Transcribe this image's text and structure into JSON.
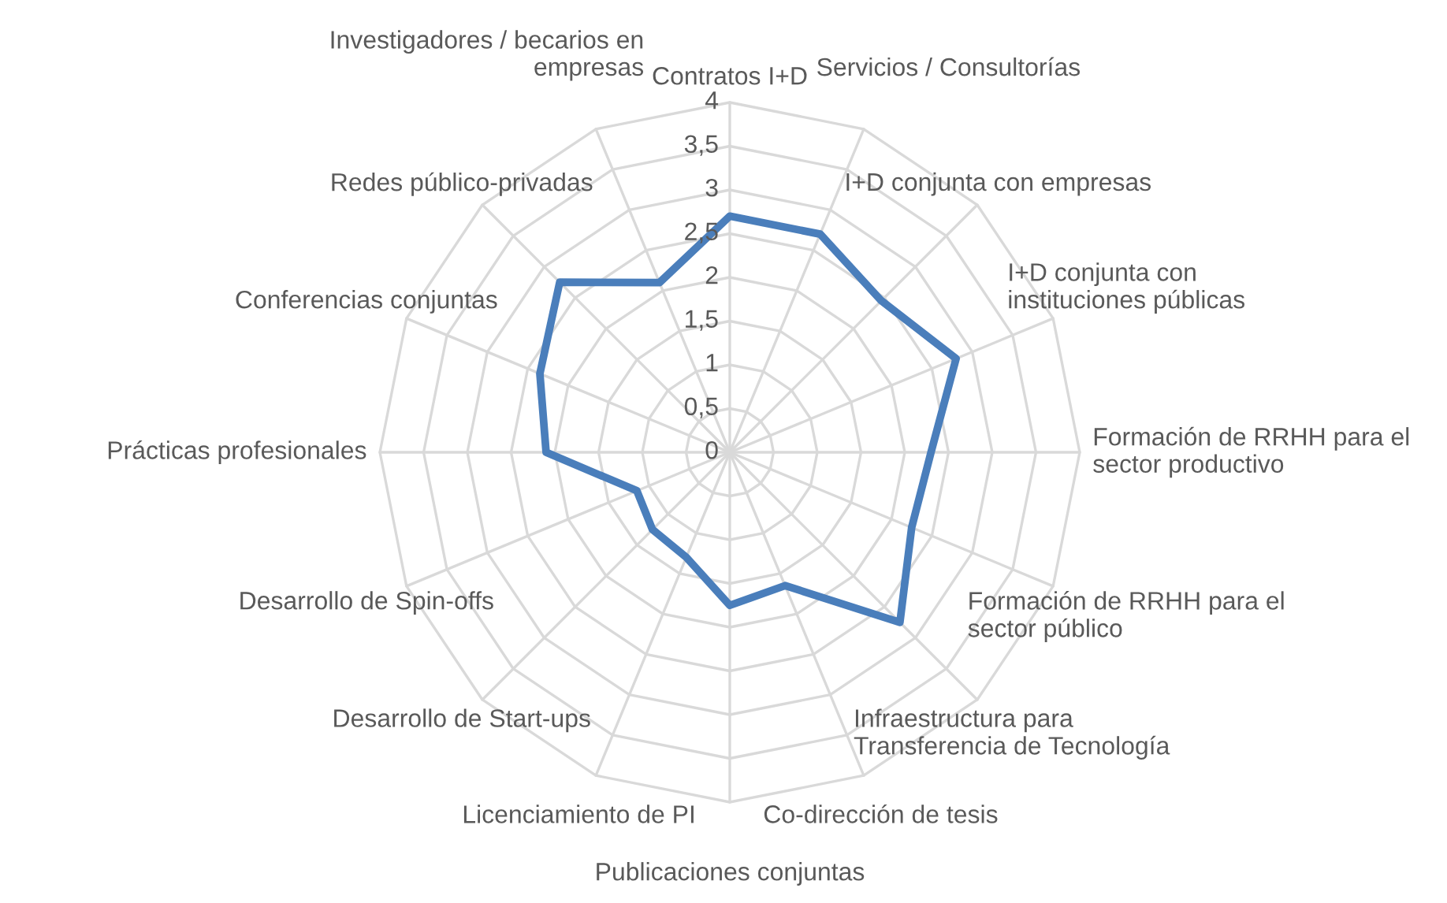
{
  "chart_data": {
    "type": "radar",
    "categories": [
      "Contratos I+D",
      "Servicios / Consultorías",
      "I+D conjunta con empresas",
      "I+D conjunta con\ninstituciones públicas",
      "Formación de RRHH para el\nsector productivo",
      "Formación de RRHH para el\nsector público",
      "Infraestructura para\nTransferencia de Tecnología",
      "Co-dirección de tesis",
      "Publicaciones conjuntas",
      "Licenciamiento de PI",
      "Desarrollo de Start-ups",
      "Desarrollo de Spin-offs",
      "Prácticas profesionales",
      "Conferencias conjuntas",
      "Redes público-privadas",
      "Investigadores / becarios en\nempresas"
    ],
    "series": [
      {
        "color": "#4a7ebb",
        "values": [
          2.7,
          2.7,
          2.45,
          2.8,
          2.3,
          2.25,
          2.75,
          1.65,
          1.75,
          1.3,
          1.25,
          1.15,
          2.1,
          2.35,
          2.75,
          2.1
        ]
      }
    ],
    "ylim": [
      0,
      4
    ],
    "yticks": [
      {
        "value": 0,
        "label": "0"
      },
      {
        "value": 0.5,
        "label": "0,5"
      },
      {
        "value": 1,
        "label": "1"
      },
      {
        "value": 1.5,
        "label": "1,5"
      },
      {
        "value": 2,
        "label": "2"
      },
      {
        "value": 2.5,
        "label": "2,5"
      },
      {
        "value": 3,
        "label": "3"
      },
      {
        "value": 3.5,
        "label": "3,5"
      },
      {
        "value": 4,
        "label": "4"
      }
    ],
    "grid": true,
    "marker": "none",
    "line_style": "solid"
  }
}
